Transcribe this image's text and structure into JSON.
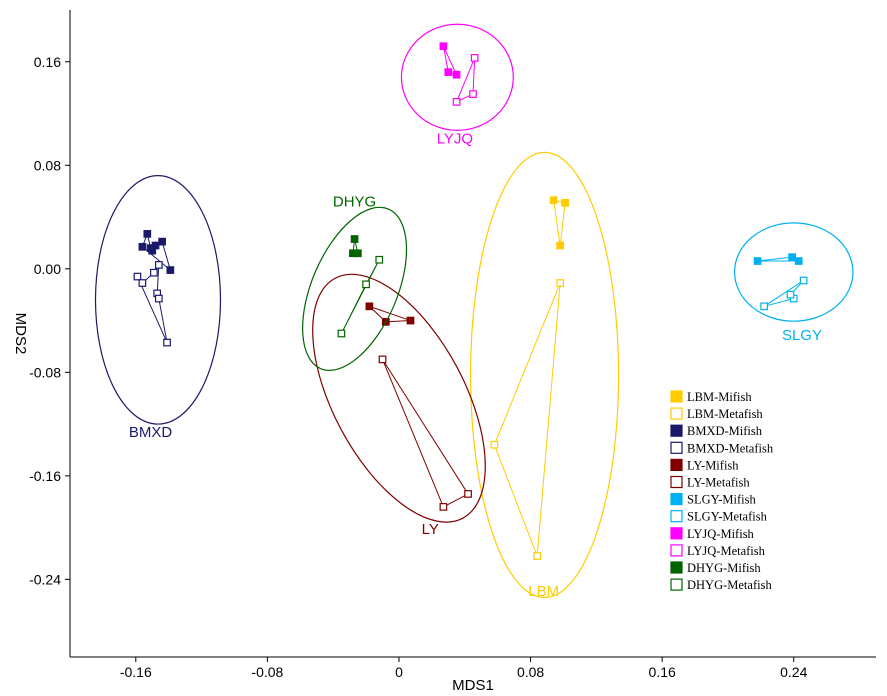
{
  "chart_data": {
    "type": "scatter",
    "xlabel": "MDS1",
    "ylabel": "MDS2",
    "xlim": [
      -0.2,
      0.29
    ],
    "ylim": [
      -0.3,
      0.2
    ],
    "xticks": [
      -0.16,
      -0.08,
      0,
      0.08,
      0.16,
      0.24
    ],
    "yticks": [
      -0.24,
      -0.16,
      -0.08,
      0.0,
      0.08,
      0.16
    ],
    "xtick_labels": [
      "-0.16",
      "-0.08",
      "0",
      "0.08",
      "0.16",
      "0.24"
    ],
    "ytick_labels": [
      "-0.24",
      "-0.16",
      "-0.08",
      "0.00",
      "0.08",
      "0.16"
    ],
    "grid": false,
    "legend_position": "right",
    "groups": [
      {
        "name": "LBM",
        "color": "#FFCC00",
        "label_pos": [
          0.088,
          -0.253
        ],
        "ellipse": {
          "cx": 0.0885,
          "cy": -0.082,
          "rx": 0.045,
          "ry": 0.172,
          "angle": 0
        },
        "series": [
          {
            "name": "LBM-Mifish",
            "filled": true,
            "points": [
              [
                0.094,
                0.053
              ],
              [
                0.101,
                0.051
              ],
              [
                0.098,
                0.018
              ]
            ]
          },
          {
            "name": "LBM-Metafish",
            "filled": false,
            "points": [
              [
                0.098,
                -0.011
              ],
              [
                0.058,
                -0.136
              ],
              [
                0.084,
                -0.222
              ]
            ]
          }
        ]
      },
      {
        "name": "BMXD",
        "color": "#1A1A6B",
        "label_pos": [
          -0.151,
          -0.13
        ],
        "ellipse": {
          "cx": -0.1465,
          "cy": -0.024,
          "rx": 0.038,
          "ry": 0.096,
          "angle": 0
        },
        "series": [
          {
            "name": "BMXD-Mifish",
            "filled": true,
            "points": [
              [
                -0.156,
                0.017
              ],
              [
                -0.153,
                0.027
              ],
              [
                -0.151,
                0.016
              ],
              [
                -0.15,
                0.014
              ],
              [
                -0.148,
                0.018
              ],
              [
                -0.144,
                0.021
              ],
              [
                -0.139,
                -0.001
              ]
            ]
          },
          {
            "name": "BMXD-Metafish",
            "filled": false,
            "points": [
              [
                -0.159,
                -0.006
              ],
              [
                -0.156,
                -0.011
              ],
              [
                -0.149,
                -0.003
              ],
              [
                -0.146,
                0.003
              ],
              [
                -0.147,
                -0.019
              ],
              [
                -0.146,
                -0.023
              ],
              [
                -0.141,
                -0.057
              ]
            ]
          }
        ]
      },
      {
        "name": "LY",
        "color": "#800000",
        "label_pos": [
          0.019,
          -0.205
        ],
        "ellipse": {
          "cx": 0.0,
          "cy": -0.1,
          "rx": 0.04,
          "ry": 0.105,
          "angle": -28
        },
        "series": [
          {
            "name": "LY-Mifish",
            "filled": true,
            "points": [
              [
                -0.018,
                -0.029
              ],
              [
                -0.008,
                -0.041
              ],
              [
                0.007,
                -0.04
              ]
            ]
          },
          {
            "name": "LY-Metafish",
            "filled": false,
            "points": [
              [
                -0.01,
                -0.07
              ],
              [
                0.027,
                -0.184
              ],
              [
                0.042,
                -0.174
              ]
            ]
          }
        ]
      },
      {
        "name": "SLGY",
        "color": "#00B0F0",
        "label_pos": [
          0.245,
          -0.055
        ],
        "ellipse": {
          "cx": 0.24,
          "cy": -0.0025,
          "rx": 0.036,
          "ry": 0.038,
          "angle": 0
        },
        "series": [
          {
            "name": "SLGY-Mifish",
            "filled": true,
            "points": [
              [
                0.218,
                0.006
              ],
              [
                0.239,
                0.009
              ],
              [
                0.243,
                0.006
              ]
            ]
          },
          {
            "name": "SLGY-Metafish",
            "filled": false,
            "points": [
              [
                0.222,
                -0.029
              ],
              [
                0.24,
                -0.023
              ],
              [
                0.238,
                -0.02
              ],
              [
                0.246,
                -0.009
              ]
            ]
          }
        ]
      },
      {
        "name": "LYJQ",
        "color": "#FF00FF",
        "label_pos": [
          0.034,
          0.097
        ],
        "ellipse": {
          "cx": 0.0355,
          "cy": 0.148,
          "rx": 0.034,
          "ry": 0.041,
          "angle": 0
        },
        "series": [
          {
            "name": "LYJQ-Mifish",
            "filled": true,
            "points": [
              [
                0.027,
                0.172
              ],
              [
                0.03,
                0.152
              ],
              [
                0.035,
                0.15
              ]
            ]
          },
          {
            "name": "LYJQ-Metafish",
            "filled": false,
            "points": [
              [
                0.035,
                0.129
              ],
              [
                0.045,
                0.135
              ],
              [
                0.046,
                0.163
              ]
            ]
          }
        ]
      },
      {
        "name": "DHYG",
        "color": "#006400",
        "label_pos": [
          -0.027,
          0.048
        ],
        "ellipse": {
          "cx": -0.027,
          "cy": -0.0155,
          "rx": 0.026,
          "ry": 0.067,
          "angle": 23
        },
        "series": [
          {
            "name": "DHYG-Mifish",
            "filled": true,
            "points": [
              [
                -0.027,
                0.023
              ],
              [
                -0.028,
                0.012
              ],
              [
                -0.025,
                0.012
              ]
            ]
          },
          {
            "name": "DHYG-Metafish",
            "filled": false,
            "points": [
              [
                -0.035,
                -0.05
              ],
              [
                -0.02,
                -0.012
              ],
              [
                -0.012,
                0.007
              ]
            ]
          }
        ]
      }
    ],
    "legend": [
      {
        "label": "LBM-Mifish",
        "color": "#FFCC00",
        "filled": true
      },
      {
        "label": "LBM-Metafish",
        "color": "#FFCC00",
        "filled": false
      },
      {
        "label": "BMXD-Mifish",
        "color": "#1A1A6B",
        "filled": true
      },
      {
        "label": "BMXD-Metafish",
        "color": "#1A1A6B",
        "filled": false
      },
      {
        "label": "LY-Mifish",
        "color": "#800000",
        "filled": true
      },
      {
        "label": "LY-Metafish",
        "color": "#800000",
        "filled": false
      },
      {
        "label": "SLGY-Mifish",
        "color": "#00B0F0",
        "filled": true
      },
      {
        "label": "SLGY-Metafish",
        "color": "#00B0F0",
        "filled": false
      },
      {
        "label": "LYJQ-Mifish",
        "color": "#FF00FF",
        "filled": true
      },
      {
        "label": "LYJQ-Metafish",
        "color": "#FF00FF",
        "filled": false
      },
      {
        "label": "DHYG-Mifish",
        "color": "#006400",
        "filled": true
      },
      {
        "label": "DHYG-Metafish",
        "color": "#006400",
        "filled": false
      }
    ]
  }
}
